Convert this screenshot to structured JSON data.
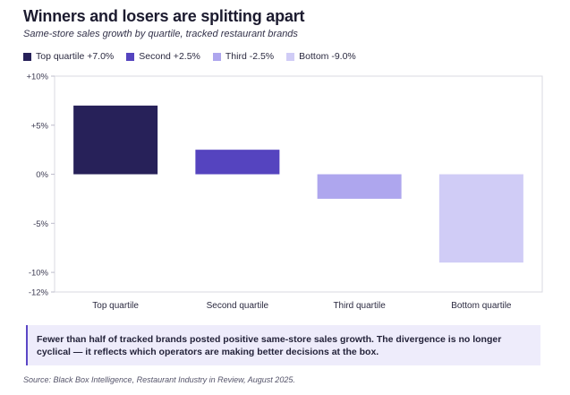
{
  "header": {
    "title": "Winners and losers are splitting apart",
    "subtitle": "Same-store sales growth by quartile, tracked restaurant brands"
  },
  "legend": [
    {
      "label": "Top quartile +7.0%",
      "color": "#272159"
    },
    {
      "label": "Second +2.5%",
      "color": "#5544bf"
    },
    {
      "label": "Third -2.5%",
      "color": "#aea6ee"
    },
    {
      "label": "Bottom -9.0%",
      "color": "#d0ccf6"
    }
  ],
  "chart_data": {
    "type": "bar",
    "title": "Winners and losers are splitting apart",
    "subtitle": "Same-store sales growth by quartile, tracked restaurant brands",
    "xlabel": "",
    "ylabel": "",
    "categories": [
      "Top quartile",
      "Second quartile",
      "Third quartile",
      "Bottom quartile"
    ],
    "values": [
      7.0,
      2.5,
      -2.5,
      -9.0
    ],
    "colors": [
      "#272159",
      "#5544bf",
      "#aea6ee",
      "#d0ccf6"
    ],
    "ylim": [
      -12,
      10
    ],
    "yticks": [
      {
        "value": 10,
        "label": "+10%"
      },
      {
        "value": 5,
        "label": "+5%"
      },
      {
        "value": 0,
        "label": "0%"
      },
      {
        "value": -5,
        "label": "-5%"
      },
      {
        "value": -10,
        "label": "-10%"
      },
      {
        "value": -12,
        "label": "-12%"
      }
    ],
    "grid": false,
    "legend_position": "top-left"
  },
  "callout": {
    "text": "Fewer than half of tracked brands posted positive same-store sales growth. The divergence is no longer cyclical — it reflects which operators are making better decisions at the box."
  },
  "source": "Source: Black Box Intelligence, Restaurant Industry in Review, August 2025."
}
